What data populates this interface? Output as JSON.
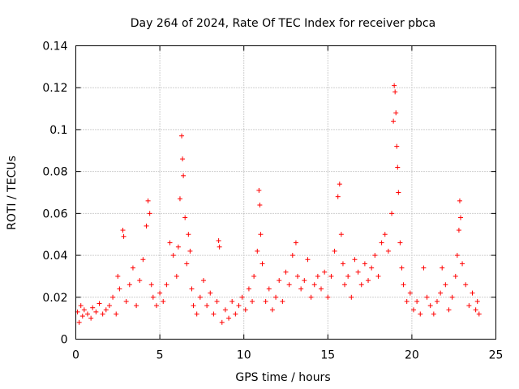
{
  "chart_data": {
    "type": "scatter",
    "title": "Day 264 of 2024, Rate Of TEC Index for receiver pbca",
    "xlabel": "GPS time / hours",
    "ylabel": "ROTI / TECUs",
    "xlim": [
      0,
      25
    ],
    "ylim": [
      0,
      0.14
    ],
    "x_ticks": [
      0,
      5,
      10,
      15,
      20,
      25
    ],
    "x_tick_labels": [
      "0",
      "5",
      "10",
      "15",
      "20",
      "25"
    ],
    "y_ticks": [
      0,
      0.02,
      0.04,
      0.06,
      0.08,
      0.1,
      0.12,
      0.14
    ],
    "y_tick_labels": [
      "0",
      "0.02",
      "0.04",
      "0.06",
      "0.08",
      "0.1",
      "0.12",
      "0.14"
    ],
    "grid": true,
    "marker": "plus",
    "color": "#ff0000",
    "series": [
      {
        "name": "ROTI",
        "points": [
          [
            0.1,
            0.013
          ],
          [
            0.2,
            0.008
          ],
          [
            0.3,
            0.016
          ],
          [
            0.4,
            0.011
          ],
          [
            0.5,
            0.014
          ],
          [
            0.7,
            0.012
          ],
          [
            0.9,
            0.01
          ],
          [
            1.0,
            0.015
          ],
          [
            1.2,
            0.013
          ],
          [
            1.4,
            0.017
          ],
          [
            1.6,
            0.012
          ],
          [
            1.8,
            0.014
          ],
          [
            2.0,
            0.016
          ],
          [
            2.2,
            0.02
          ],
          [
            2.4,
            0.012
          ],
          [
            2.5,
            0.03
          ],
          [
            2.6,
            0.024
          ],
          [
            2.8,
            0.052
          ],
          [
            2.85,
            0.049
          ],
          [
            3.0,
            0.018
          ],
          [
            3.2,
            0.026
          ],
          [
            3.4,
            0.034
          ],
          [
            3.6,
            0.016
          ],
          [
            3.8,
            0.028
          ],
          [
            4.0,
            0.038
          ],
          [
            4.2,
            0.054
          ],
          [
            4.3,
            0.066
          ],
          [
            4.4,
            0.06
          ],
          [
            4.5,
            0.026
          ],
          [
            4.6,
            0.02
          ],
          [
            4.8,
            0.016
          ],
          [
            5.0,
            0.022
          ],
          [
            5.2,
            0.018
          ],
          [
            5.4,
            0.026
          ],
          [
            5.6,
            0.046
          ],
          [
            5.8,
            0.04
          ],
          [
            6.0,
            0.03
          ],
          [
            6.1,
            0.044
          ],
          [
            6.2,
            0.067
          ],
          [
            6.3,
            0.097
          ],
          [
            6.35,
            0.086
          ],
          [
            6.4,
            0.078
          ],
          [
            6.5,
            0.058
          ],
          [
            6.6,
            0.036
          ],
          [
            6.7,
            0.05
          ],
          [
            6.8,
            0.042
          ],
          [
            6.9,
            0.024
          ],
          [
            7.0,
            0.016
          ],
          [
            7.2,
            0.012
          ],
          [
            7.4,
            0.02
          ],
          [
            7.6,
            0.028
          ],
          [
            7.8,
            0.016
          ],
          [
            8.0,
            0.022
          ],
          [
            8.2,
            0.012
          ],
          [
            8.4,
            0.018
          ],
          [
            8.5,
            0.047
          ],
          [
            8.55,
            0.044
          ],
          [
            8.7,
            0.008
          ],
          [
            8.9,
            0.014
          ],
          [
            9.1,
            0.01
          ],
          [
            9.3,
            0.018
          ],
          [
            9.5,
            0.012
          ],
          [
            9.7,
            0.016
          ],
          [
            9.9,
            0.02
          ],
          [
            10.1,
            0.014
          ],
          [
            10.3,
            0.024
          ],
          [
            10.5,
            0.018
          ],
          [
            10.6,
            0.03
          ],
          [
            10.8,
            0.042
          ],
          [
            10.9,
            0.071
          ],
          [
            10.95,
            0.064
          ],
          [
            11.0,
            0.05
          ],
          [
            11.1,
            0.036
          ],
          [
            11.3,
            0.018
          ],
          [
            11.5,
            0.024
          ],
          [
            11.7,
            0.014
          ],
          [
            11.9,
            0.02
          ],
          [
            12.1,
            0.028
          ],
          [
            12.3,
            0.018
          ],
          [
            12.5,
            0.032
          ],
          [
            12.7,
            0.026
          ],
          [
            12.9,
            0.04
          ],
          [
            13.1,
            0.046
          ],
          [
            13.2,
            0.03
          ],
          [
            13.4,
            0.024
          ],
          [
            13.6,
            0.028
          ],
          [
            13.8,
            0.038
          ],
          [
            14.0,
            0.02
          ],
          [
            14.2,
            0.026
          ],
          [
            14.4,
            0.03
          ],
          [
            14.6,
            0.024
          ],
          [
            14.8,
            0.032
          ],
          [
            15.0,
            0.02
          ],
          [
            15.2,
            0.03
          ],
          [
            15.4,
            0.042
          ],
          [
            15.6,
            0.068
          ],
          [
            15.7,
            0.074
          ],
          [
            15.8,
            0.05
          ],
          [
            15.9,
            0.036
          ],
          [
            16.0,
            0.026
          ],
          [
            16.2,
            0.03
          ],
          [
            16.4,
            0.02
          ],
          [
            16.6,
            0.038
          ],
          [
            16.8,
            0.032
          ],
          [
            17.0,
            0.026
          ],
          [
            17.2,
            0.036
          ],
          [
            17.4,
            0.028
          ],
          [
            17.6,
            0.034
          ],
          [
            17.8,
            0.04
          ],
          [
            18.0,
            0.03
          ],
          [
            18.2,
            0.046
          ],
          [
            18.4,
            0.05
          ],
          [
            18.6,
            0.042
          ],
          [
            18.8,
            0.06
          ],
          [
            18.9,
            0.104
          ],
          [
            18.95,
            0.121
          ],
          [
            19.0,
            0.118
          ],
          [
            19.05,
            0.108
          ],
          [
            19.1,
            0.092
          ],
          [
            19.15,
            0.082
          ],
          [
            19.2,
            0.07
          ],
          [
            19.3,
            0.046
          ],
          [
            19.4,
            0.034
          ],
          [
            19.5,
            0.026
          ],
          [
            19.7,
            0.018
          ],
          [
            19.9,
            0.022
          ],
          [
            20.1,
            0.014
          ],
          [
            20.3,
            0.018
          ],
          [
            20.5,
            0.012
          ],
          [
            20.7,
            0.034
          ],
          [
            20.9,
            0.02
          ],
          [
            21.1,
            0.016
          ],
          [
            21.3,
            0.012
          ],
          [
            21.5,
            0.018
          ],
          [
            21.7,
            0.022
          ],
          [
            21.8,
            0.034
          ],
          [
            22.0,
            0.026
          ],
          [
            22.2,
            0.014
          ],
          [
            22.4,
            0.02
          ],
          [
            22.6,
            0.03
          ],
          [
            22.7,
            0.04
          ],
          [
            22.8,
            0.052
          ],
          [
            22.85,
            0.066
          ],
          [
            22.9,
            0.058
          ],
          [
            23.0,
            0.036
          ],
          [
            23.2,
            0.026
          ],
          [
            23.4,
            0.016
          ],
          [
            23.6,
            0.022
          ],
          [
            23.8,
            0.014
          ],
          [
            23.9,
            0.018
          ],
          [
            24.0,
            0.012
          ]
        ]
      }
    ]
  }
}
